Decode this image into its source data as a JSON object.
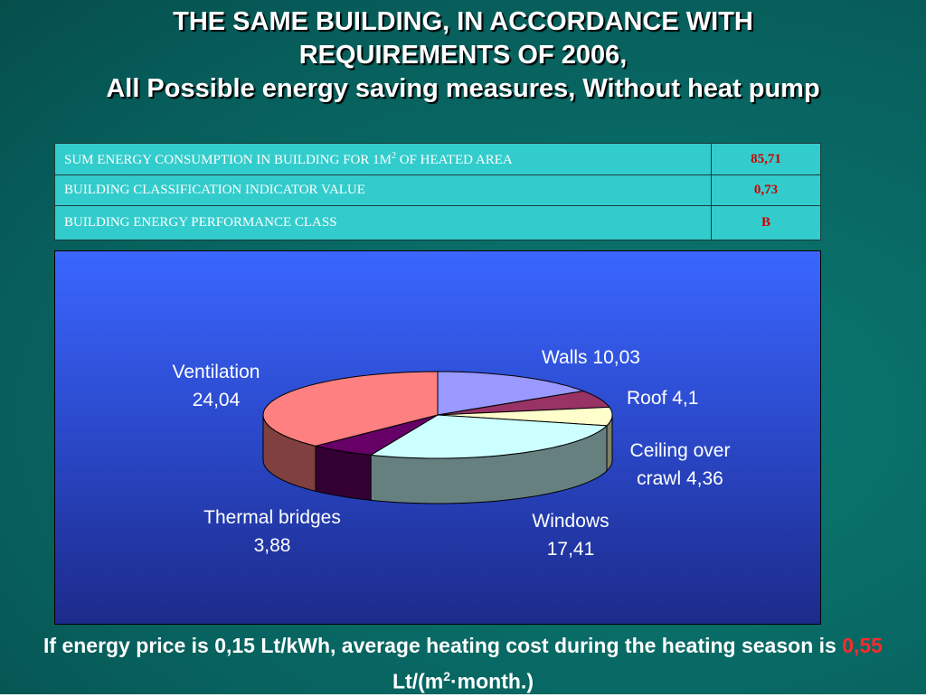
{
  "title": [
    "THE SAME BUILDING, IN ACCORDANCE WITH",
    "REQUIREMENTS OF 2006,",
    "All Possible energy saving measures, Without heat pump"
  ],
  "table": {
    "rows": [
      [
        [
          "SUM ENERGY CONSUMPTION IN BUILDING FOR 1M",
          "2",
          " OF HEATED AREA"
        ],
        "85,71"
      ],
      [
        [
          "BUILDING CLASSIFICATION INDICATOR VALUE"
        ],
        "0,73"
      ],
      [
        [
          "BUILDING ENERGY PERFORMANCE CLASS"
        ],
        "B"
      ]
    ]
  },
  "chart_data": {
    "type": "pie",
    "style": "3d",
    "categories": [
      "Walls",
      "Roof",
      "Ceiling over crawl",
      "Windows",
      "Thermal bridges",
      "Ventilation"
    ],
    "values": [
      10.03,
      4.1,
      4.36,
      17.41,
      3.88,
      24.04
    ],
    "value_labels": [
      "10,03",
      "4,1",
      "4,36",
      "17,41",
      "3,88",
      "24,04"
    ],
    "colors": [
      "#9999ff",
      "#993366",
      "#ffffcc",
      "#ccffff",
      "#660066",
      "#ff8080"
    ]
  },
  "footer": [
    "If energy price is 0,15 Lt/kWh, average heating cost during the heating season is ",
    "0,55",
    " Lt/(m",
    "2",
    "·month.)"
  ]
}
